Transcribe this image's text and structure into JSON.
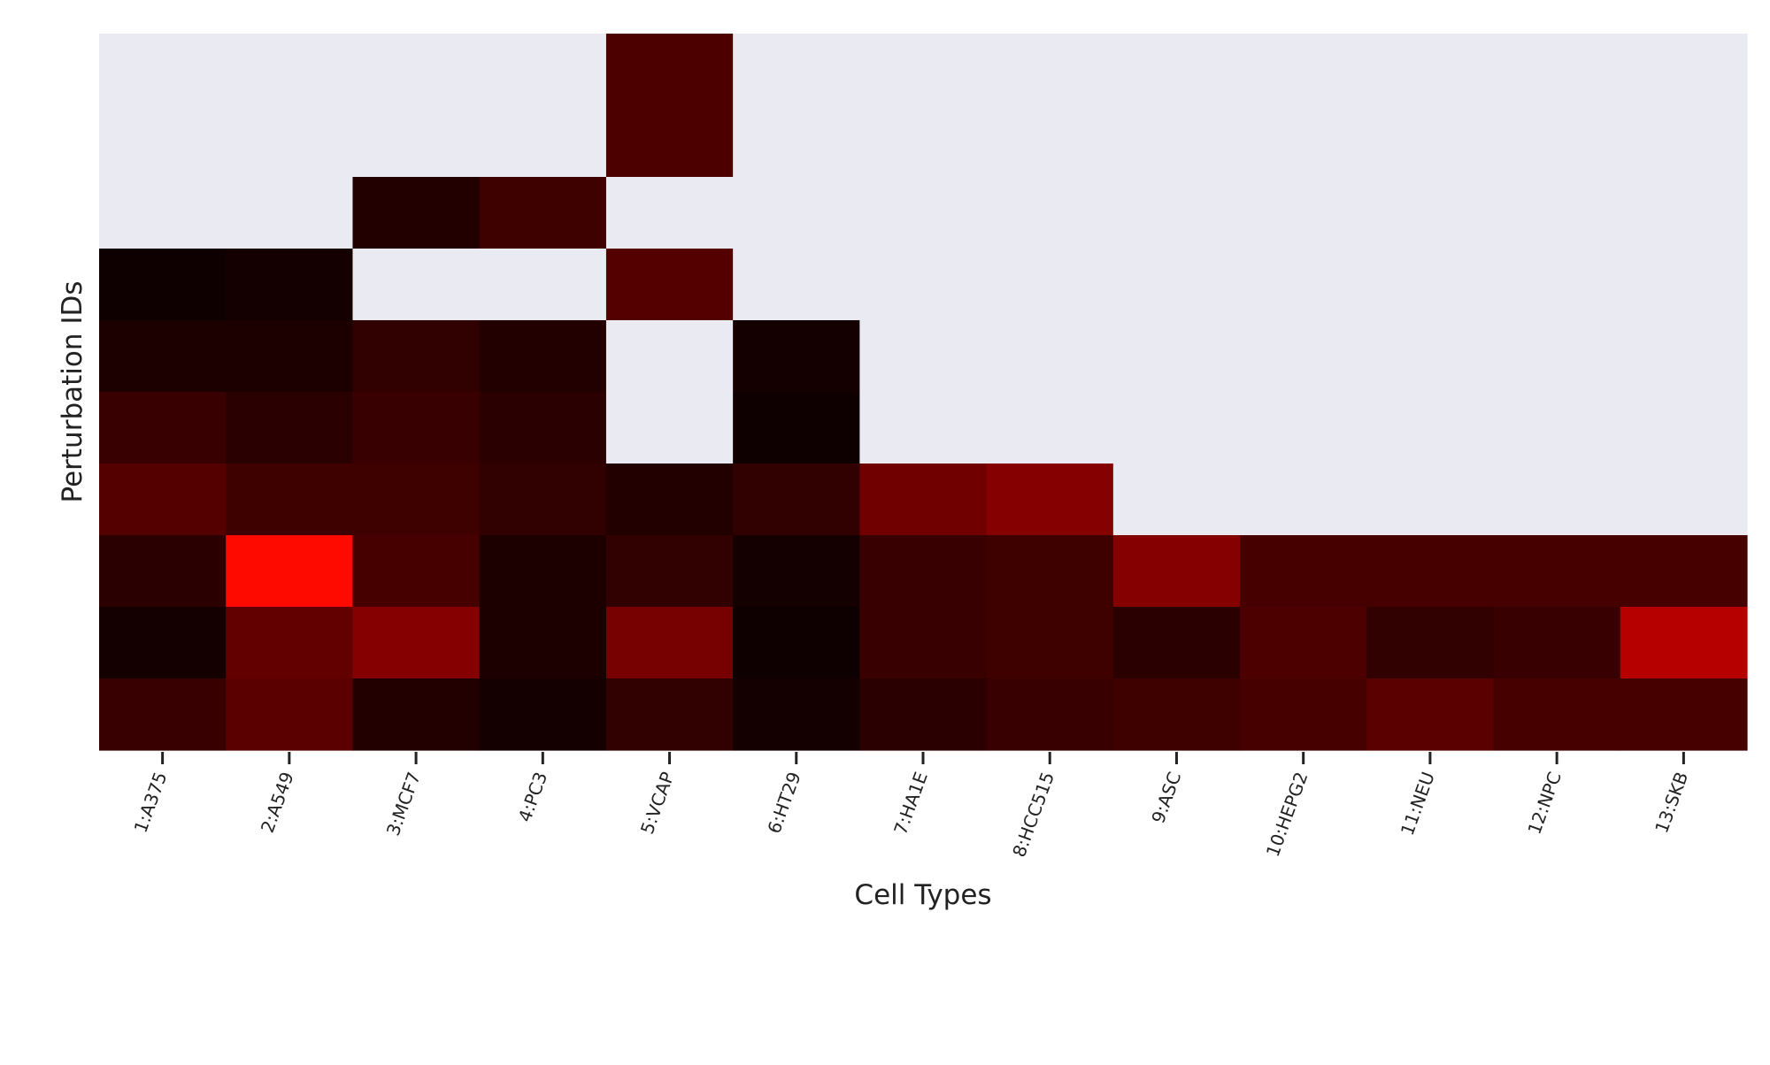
{
  "chart_data": {
    "type": "heatmap",
    "xlabel": "Cell Types",
    "ylabel": "Perturbation IDs",
    "x_categories": [
      "1:A375",
      "2:A549",
      "3:MCF7",
      "4:PC3",
      "5:VCAP",
      "6:HT29",
      "7:HA1E",
      "8:HCC515",
      "9:ASC",
      "10:HEPG2",
      "11:NEU",
      "12:NPC",
      "13:SKB"
    ],
    "row_count": 10,
    "row_ticks_shown": false,
    "missing_color": "#eaeaf2",
    "colormap": "hot",
    "value_range": [
      0,
      1
    ],
    "values": [
      [
        null,
        null,
        null,
        null,
        0.11,
        null,
        null,
        null,
        null,
        null,
        null,
        null,
        null
      ],
      [
        null,
        null,
        null,
        null,
        0.11,
        null,
        null,
        null,
        null,
        null,
        null,
        null,
        null
      ],
      [
        null,
        null,
        0.05,
        0.09,
        null,
        null,
        null,
        null,
        null,
        null,
        null,
        null,
        null
      ],
      [
        0.02,
        0.03,
        null,
        null,
        0.12,
        null,
        null,
        null,
        null,
        null,
        null,
        null,
        null
      ],
      [
        0.04,
        0.04,
        0.07,
        0.05,
        null,
        0.03,
        null,
        null,
        null,
        null,
        null,
        null,
        null
      ],
      [
        0.08,
        0.06,
        0.08,
        0.06,
        null,
        0.02,
        null,
        null,
        null,
        null,
        null,
        null,
        null
      ],
      [
        0.12,
        0.09,
        0.09,
        0.07,
        0.05,
        0.07,
        0.16,
        0.19,
        null,
        null,
        null,
        null,
        null
      ],
      [
        0.06,
        0.38,
        0.1,
        0.04,
        0.07,
        0.03,
        0.08,
        0.09,
        0.19,
        0.1,
        0.1,
        0.1,
        0.1
      ],
      [
        0.03,
        0.14,
        0.19,
        0.04,
        0.17,
        0.02,
        0.08,
        0.09,
        0.06,
        0.11,
        0.07,
        0.08,
        0.26
      ],
      [
        0.08,
        0.13,
        0.05,
        0.03,
        0.07,
        0.03,
        0.06,
        0.08,
        0.09,
        0.1,
        0.13,
        0.1,
        0.1
      ]
    ]
  }
}
